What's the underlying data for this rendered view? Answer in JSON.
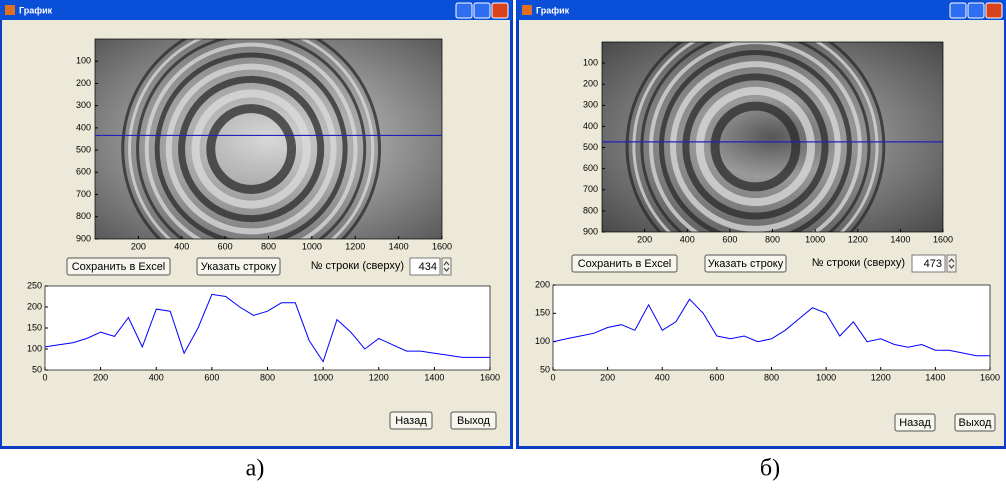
{
  "windows": [
    {
      "title": "График",
      "image": {
        "xlim": [
          0,
          1600
        ],
        "ylim": [
          0,
          900
        ],
        "xticks": [
          200,
          400,
          600,
          800,
          1000,
          1200,
          1400,
          1600
        ],
        "yticks": [
          100,
          200,
          300,
          400,
          500,
          600,
          700,
          800,
          900
        ]
      },
      "save_button": "Сохранить в Excel",
      "row_button": "Указать строку",
      "row_label": "№ строки (сверху)",
      "row_value": 434,
      "plot": {
        "xlim": [
          0,
          1600
        ],
        "ylim": [
          50,
          250
        ],
        "xticks": [
          0,
          200,
          400,
          600,
          800,
          1000,
          1200,
          1400,
          1600
        ],
        "yticks": [
          50,
          100,
          150,
          200,
          250
        ],
        "color": "#0000ff",
        "x": [
          0,
          50,
          100,
          150,
          200,
          250,
          300,
          350,
          400,
          450,
          500,
          550,
          600,
          650,
          700,
          750,
          800,
          850,
          900,
          950,
          1000,
          1050,
          1100,
          1150,
          1200,
          1250,
          1300,
          1350,
          1400,
          1450,
          1500,
          1550,
          1600
        ],
        "values": [
          105,
          110,
          115,
          125,
          140,
          130,
          175,
          105,
          195,
          190,
          90,
          150,
          230,
          225,
          200,
          180,
          190,
          210,
          210,
          120,
          70,
          170,
          140,
          100,
          125,
          110,
          95,
          95,
          90,
          85,
          80,
          80,
          80
        ]
      },
      "back_button": "Назад",
      "exit_button": "Выход"
    },
    {
      "title": "График",
      "image": {
        "xlim": [
          0,
          1600
        ],
        "ylim": [
          0,
          900
        ],
        "xticks": [
          200,
          400,
          600,
          800,
          1000,
          1200,
          1400,
          1600
        ],
        "yticks": [
          100,
          200,
          300,
          400,
          500,
          600,
          700,
          800,
          900
        ]
      },
      "save_button": "Сохранить в Excel",
      "row_button": "Указать строку",
      "row_label": "№ строки (сверху)",
      "row_value": 473,
      "plot": {
        "xlim": [
          0,
          1600
        ],
        "ylim": [
          50,
          200
        ],
        "xticks": [
          0,
          200,
          400,
          600,
          800,
          1000,
          1200,
          1400,
          1600
        ],
        "yticks": [
          50,
          100,
          150,
          200
        ],
        "color": "#0000ff",
        "x": [
          0,
          50,
          100,
          150,
          200,
          250,
          300,
          350,
          400,
          450,
          500,
          550,
          600,
          650,
          700,
          750,
          800,
          850,
          900,
          950,
          1000,
          1050,
          1100,
          1150,
          1200,
          1250,
          1300,
          1350,
          1400,
          1450,
          1500,
          1550,
          1600
        ],
        "values": [
          100,
          105,
          110,
          115,
          125,
          130,
          120,
          165,
          120,
          135,
          175,
          150,
          110,
          105,
          110,
          100,
          105,
          120,
          140,
          160,
          150,
          110,
          135,
          100,
          105,
          95,
          90,
          95,
          85,
          85,
          80,
          75,
          75
        ]
      },
      "back_button": "Назад",
      "exit_button": "Выход"
    }
  ],
  "captions": [
    "а)",
    "б)"
  ]
}
